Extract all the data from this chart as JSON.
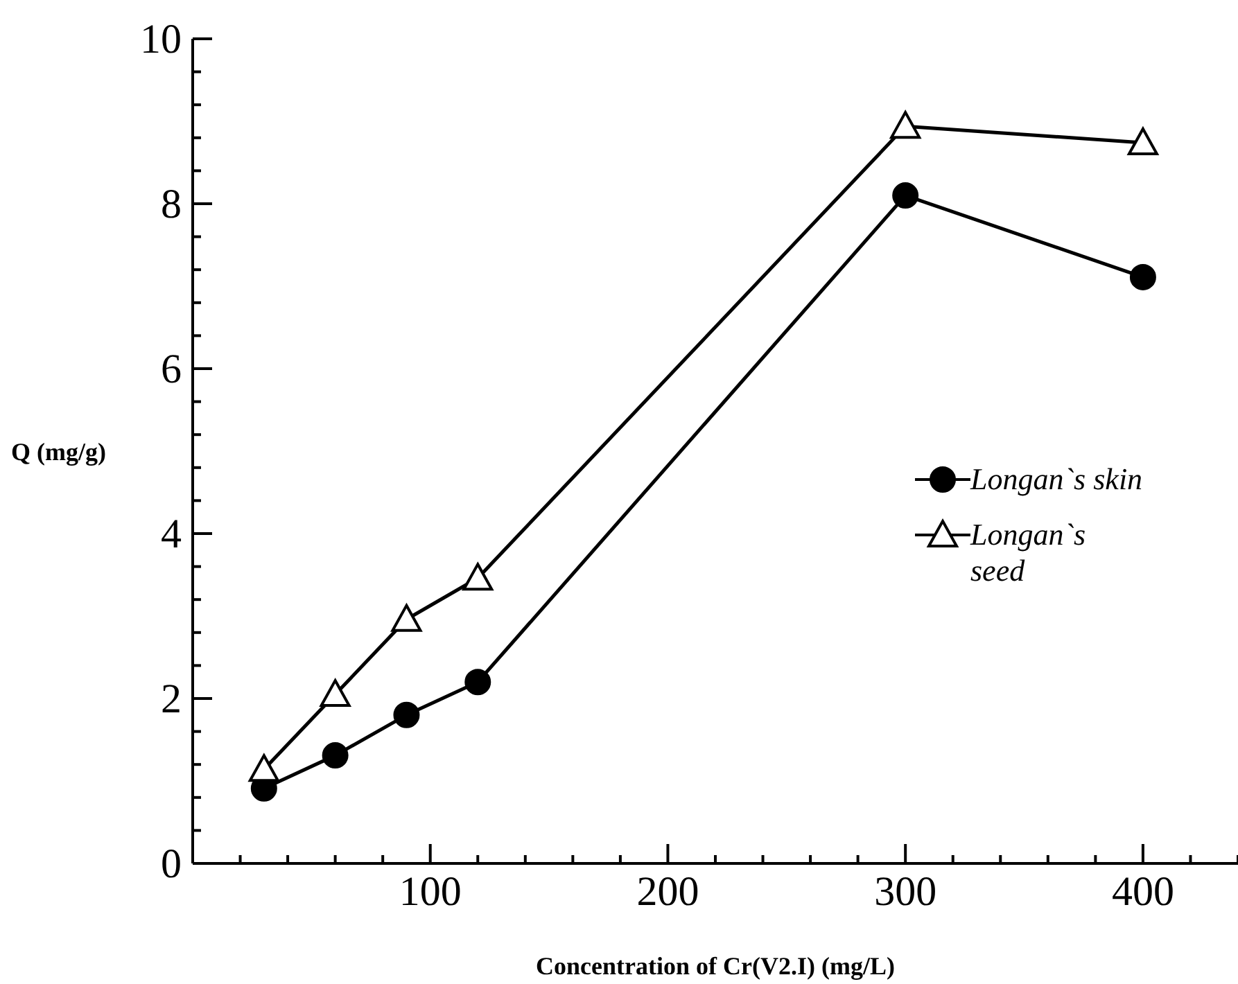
{
  "chart_data": {
    "type": "line",
    "xlabel": "Concentration of Cr(V2.I) (mg/L)",
    "ylabel": "Q (mg/g)",
    "xlim": [
      0,
      440
    ],
    "ylim": [
      0,
      10
    ],
    "xticks": [
      {
        "value": 20,
        "label": null
      },
      {
        "value": 40,
        "label": null
      },
      {
        "value": 60,
        "label": null
      },
      {
        "value": 80,
        "label": null
      },
      100,
      {
        "value": 120,
        "label": null
      },
      {
        "value": 140,
        "label": null
      },
      {
        "value": 160,
        "label": null
      },
      {
        "value": 180,
        "label": null
      },
      200,
      {
        "value": 220,
        "label": null
      },
      {
        "value": 240,
        "label": null
      },
      {
        "value": 260,
        "label": null
      },
      {
        "value": 280,
        "label": null
      },
      300,
      {
        "value": 320,
        "label": null
      },
      {
        "value": 340,
        "label": null
      },
      {
        "value": 360,
        "label": null
      },
      {
        "value": 380,
        "label": null
      },
      400,
      {
        "value": 420,
        "label": null
      },
      {
        "value": 440,
        "label": null
      }
    ],
    "yticks": [
      0,
      {
        "value": 0.4,
        "label": null
      },
      {
        "value": 0.8,
        "label": null
      },
      {
        "value": 1.2,
        "label": null
      },
      {
        "value": 1.6,
        "label": null
      },
      2,
      {
        "value": 2.4,
        "label": null
      },
      {
        "value": 2.8,
        "label": null
      },
      {
        "value": 3.2,
        "label": null
      },
      {
        "value": 3.6,
        "label": null
      },
      4,
      {
        "value": 4.4,
        "label": null
      },
      {
        "value": 4.8,
        "label": null
      },
      {
        "value": 5.2,
        "label": null
      },
      {
        "value": 5.6,
        "label": null
      },
      6,
      {
        "value": 6.4,
        "label": null
      },
      {
        "value": 6.8,
        "label": null
      },
      {
        "value": 7.2,
        "label": null
      },
      {
        "value": 7.6,
        "label": null
      },
      8,
      {
        "value": 8.4,
        "label": null
      },
      {
        "value": 8.8,
        "label": null
      },
      {
        "value": 9.2,
        "label": null
      },
      {
        "value": 9.6,
        "label": null
      },
      10
    ],
    "x": [
      30,
      60,
      90,
      120,
      300,
      400
    ],
    "series": [
      {
        "name": "Longan`s skin",
        "color": "#000000",
        "marker": "circle",
        "values": [
          0.91,
          1.31,
          1.8,
          2.2,
          8.1,
          7.11
        ]
      },
      {
        "name": "Longan`s seed",
        "color": "#000000",
        "marker": "triangle",
        "values": [
          1.14,
          2.05,
          2.96,
          3.46,
          8.94,
          8.74
        ]
      }
    ],
    "legend": "right",
    "line_style": "solid"
  }
}
